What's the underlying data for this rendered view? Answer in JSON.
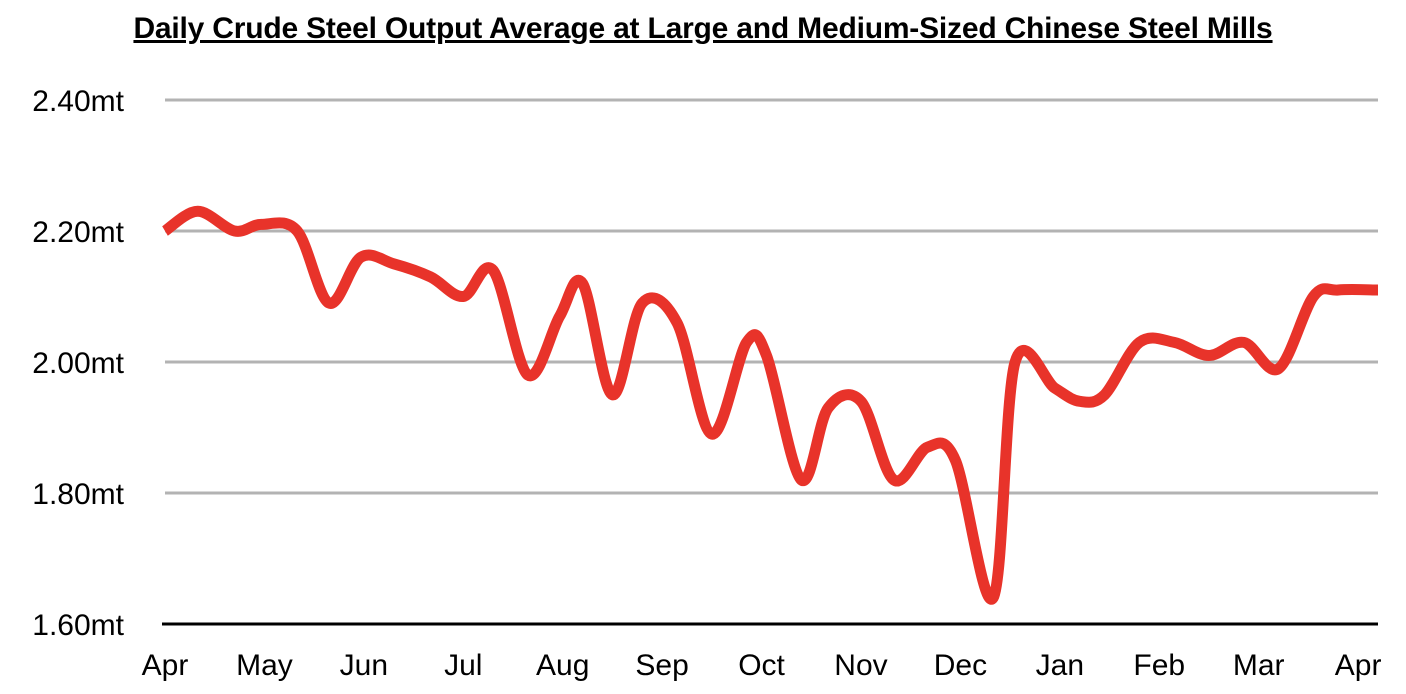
{
  "chart_data": {
    "type": "line",
    "title": "Daily Crude Steel Output Average at Large and Medium-Sized Chinese Steel Mills",
    "xlabel": "",
    "ylabel": "",
    "ylim": [
      1.6,
      2.4
    ],
    "yticks": [
      1.6,
      1.8,
      2.0,
      2.2,
      2.4
    ],
    "ytick_labels": [
      "1.60mt",
      "1.80mt",
      "2.00mt",
      "2.20mt",
      "2.40mt"
    ],
    "xlim": [
      0,
      12.2
    ],
    "xticks": [
      0,
      1,
      2,
      3,
      4,
      5,
      6,
      7,
      8,
      9,
      10,
      11,
      12
    ],
    "xtick_labels": [
      "Apr",
      "May",
      "Jun",
      "Jul",
      "Aug",
      "Sep",
      "Oct",
      "Nov",
      "Dec",
      "Jan",
      "Feb",
      "Mar",
      "Apr"
    ],
    "grid": true,
    "legend": "none",
    "colors": {
      "line": "#e8332a",
      "grid": "#b3b3b3",
      "axis": "#000000"
    },
    "series": [
      {
        "x": [
          0.0,
          0.33,
          0.7,
          0.97,
          1.33,
          1.65,
          1.97,
          2.3,
          2.67,
          3.0,
          3.3,
          3.65,
          3.97,
          4.2,
          4.5,
          4.8,
          5.15,
          5.5,
          5.85,
          6.05,
          6.4,
          6.67,
          7.0,
          7.33,
          7.67,
          7.95,
          8.33,
          8.55,
          8.95,
          9.2,
          9.45,
          9.8,
          10.15,
          10.5,
          10.85,
          11.2,
          11.55,
          11.8,
          12.2
        ],
        "values": [
          2.2,
          2.23,
          2.2,
          2.21,
          2.2,
          2.09,
          2.16,
          2.15,
          2.13,
          2.1,
          2.14,
          1.98,
          2.07,
          2.12,
          1.95,
          2.09,
          2.06,
          1.89,
          2.03,
          2.01,
          1.82,
          1.93,
          1.94,
          1.82,
          1.87,
          1.85,
          1.64,
          2.0,
          1.96,
          1.94,
          1.95,
          2.03,
          2.03,
          2.01,
          2.03,
          1.99,
          2.1,
          2.11,
          2.11
        ]
      }
    ]
  }
}
